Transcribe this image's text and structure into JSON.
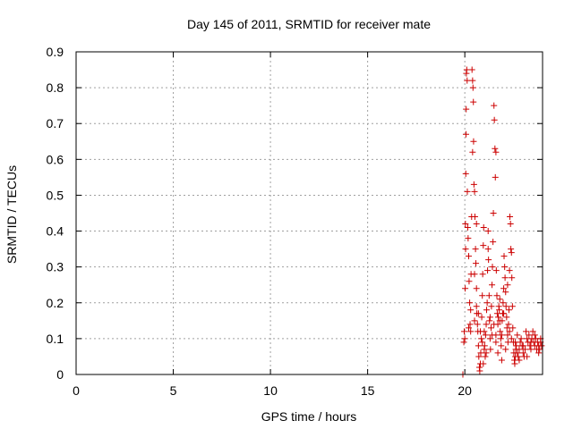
{
  "chart_data": {
    "type": "scatter",
    "title": "Day 145 of 2011, SRMTID for receiver mate",
    "xlabel": "GPS time / hours",
    "ylabel": "SRMTID / TECUs",
    "xlim": [
      0,
      24
    ],
    "ylim": [
      0,
      0.9
    ],
    "xticks": [
      0,
      5,
      10,
      15,
      20
    ],
    "xtick_labels": [
      "0",
      "5",
      "10",
      "15",
      "20"
    ],
    "yticks": [
      0,
      0.1,
      0.2,
      0.3,
      0.4,
      0.5,
      0.6,
      0.7,
      0.8,
      0.9
    ],
    "ytick_labels": [
      "0",
      "0.1",
      "0.2",
      "0.3",
      "0.4",
      "0.5",
      "0.6",
      "0.7",
      "0.8",
      "0.9"
    ],
    "grid": true,
    "marker": "+",
    "marker_color": "#cc0000",
    "series": [
      {
        "points": [
          [
            19.9,
            0.0
          ],
          [
            19.95,
            0.09
          ],
          [
            19.97,
            0.12
          ],
          [
            20.0,
            0.1
          ],
          [
            20.02,
            0.24
          ],
          [
            20.03,
            0.42
          ],
          [
            20.04,
            0.35
          ],
          [
            20.05,
            0.56
          ],
          [
            20.06,
            0.67
          ],
          [
            20.07,
            0.74
          ],
          [
            20.08,
            0.84
          ],
          [
            20.1,
            0.85
          ],
          [
            20.12,
            0.82
          ],
          [
            20.13,
            0.51
          ],
          [
            20.15,
            0.41
          ],
          [
            20.17,
            0.38
          ],
          [
            20.2,
            0.33
          ],
          [
            20.22,
            0.26
          ],
          [
            20.25,
            0.2
          ],
          [
            20.27,
            0.14
          ],
          [
            20.3,
            0.18
          ],
          [
            20.32,
            0.28
          ],
          [
            20.35,
            0.44
          ],
          [
            20.37,
            0.85
          ],
          [
            20.4,
            0.82
          ],
          [
            20.42,
            0.8
          ],
          [
            20.44,
            0.76
          ],
          [
            20.45,
            0.65
          ],
          [
            20.47,
            0.53
          ],
          [
            20.5,
            0.51
          ],
          [
            20.52,
            0.44
          ],
          [
            20.55,
            0.35
          ],
          [
            20.57,
            0.31
          ],
          [
            20.6,
            0.24
          ],
          [
            20.62,
            0.17
          ],
          [
            20.65,
            0.14
          ],
          [
            20.67,
            0.12
          ],
          [
            20.7,
            0.08
          ],
          [
            20.72,
            0.05
          ],
          [
            20.75,
            0.02
          ],
          [
            20.77,
            0.01
          ],
          [
            20.8,
            0.03
          ],
          [
            20.82,
            0.06
          ],
          [
            20.85,
            0.1
          ],
          [
            20.87,
            0.16
          ],
          [
            20.9,
            0.22
          ],
          [
            20.92,
            0.28
          ],
          [
            20.95,
            0.36
          ],
          [
            20.97,
            0.41
          ],
          [
            21.0,
            0.12
          ],
          [
            21.02,
            0.08
          ],
          [
            21.05,
            0.05
          ],
          [
            21.07,
            0.11
          ],
          [
            21.1,
            0.14
          ],
          [
            21.12,
            0.18
          ],
          [
            21.15,
            0.2
          ],
          [
            21.17,
            0.29
          ],
          [
            21.2,
            0.35
          ],
          [
            21.22,
            0.32
          ],
          [
            21.25,
            0.22
          ],
          [
            21.27,
            0.15
          ],
          [
            21.3,
            0.1
          ],
          [
            21.32,
            0.07
          ],
          [
            21.35,
            0.13
          ],
          [
            21.37,
            0.19
          ],
          [
            21.4,
            0.25
          ],
          [
            21.42,
            0.3
          ],
          [
            21.45,
            0.37
          ],
          [
            21.47,
            0.45
          ],
          [
            21.5,
            0.75
          ],
          [
            21.52,
            0.71
          ],
          [
            21.55,
            0.63
          ],
          [
            21.57,
            0.55
          ],
          [
            21.6,
            0.62
          ],
          [
            21.62,
            0.29
          ],
          [
            21.65,
            0.22
          ],
          [
            21.67,
            0.17
          ],
          [
            21.7,
            0.14
          ],
          [
            21.72,
            0.16
          ],
          [
            21.75,
            0.19
          ],
          [
            21.77,
            0.18
          ],
          [
            21.8,
            0.15
          ],
          [
            21.82,
            0.12
          ],
          [
            21.85,
            0.1
          ],
          [
            21.87,
            0.08
          ],
          [
            21.9,
            0.11
          ],
          [
            21.92,
            0.15
          ],
          [
            21.95,
            0.17
          ],
          [
            21.97,
            0.2
          ],
          [
            22.0,
            0.24
          ],
          [
            22.02,
            0.33
          ],
          [
            22.05,
            0.3
          ],
          [
            22.07,
            0.27
          ],
          [
            22.1,
            0.23
          ],
          [
            22.12,
            0.19
          ],
          [
            22.15,
            0.16
          ],
          [
            22.17,
            0.13
          ],
          [
            22.2,
            0.11
          ],
          [
            22.22,
            0.09
          ],
          [
            22.25,
            0.14
          ],
          [
            22.27,
            0.18
          ],
          [
            22.3,
            0.29
          ],
          [
            22.32,
            0.44
          ],
          [
            22.35,
            0.42
          ],
          [
            22.37,
            0.35
          ],
          [
            22.4,
            0.34
          ],
          [
            22.42,
            0.27
          ],
          [
            22.45,
            0.19
          ],
          [
            22.47,
            0.13
          ],
          [
            22.5,
            0.09
          ],
          [
            22.52,
            0.06
          ],
          [
            22.55,
            0.04
          ],
          [
            22.57,
            0.03
          ],
          [
            22.6,
            0.05
          ],
          [
            22.62,
            0.07
          ],
          [
            22.65,
            0.08
          ],
          [
            22.7,
            0.06
          ],
          [
            22.75,
            0.05
          ],
          [
            22.8,
            0.07
          ],
          [
            22.85,
            0.09
          ],
          [
            22.9,
            0.1
          ],
          [
            22.95,
            0.08
          ],
          [
            23.0,
            0.06
          ],
          [
            23.05,
            0.05
          ],
          [
            23.1,
            0.07
          ],
          [
            23.15,
            0.12
          ],
          [
            23.2,
            0.1
          ],
          [
            23.25,
            0.09
          ],
          [
            23.3,
            0.11
          ],
          [
            23.35,
            0.08
          ],
          [
            23.4,
            0.07
          ],
          [
            23.45,
            0.1
          ],
          [
            23.5,
            0.12
          ],
          [
            23.55,
            0.09
          ],
          [
            23.6,
            0.08
          ],
          [
            23.65,
            0.1
          ],
          [
            23.7,
            0.07
          ],
          [
            23.75,
            0.09
          ],
          [
            23.8,
            0.08
          ],
          [
            23.85,
            0.07
          ],
          [
            23.9,
            0.09
          ],
          [
            23.95,
            0.08
          ],
          [
            20.4,
            0.62
          ],
          [
            20.5,
            0.28
          ],
          [
            20.6,
            0.19
          ],
          [
            20.8,
            0.12
          ],
          [
            21.0,
            0.07
          ],
          [
            21.3,
            0.16
          ],
          [
            21.5,
            0.14
          ],
          [
            21.6,
            0.11
          ],
          [
            21.8,
            0.21
          ],
          [
            22.0,
            0.17
          ],
          [
            22.2,
            0.25
          ],
          [
            22.4,
            0.1
          ],
          [
            20.2,
            0.13
          ],
          [
            20.3,
            0.12
          ],
          [
            20.5,
            0.15
          ],
          [
            20.7,
            0.17
          ],
          [
            20.9,
            0.09
          ],
          [
            21.1,
            0.06
          ],
          [
            21.4,
            0.11
          ],
          [
            21.6,
            0.09
          ],
          [
            21.7,
            0.06
          ],
          [
            21.9,
            0.04
          ],
          [
            22.1,
            0.07
          ],
          [
            22.3,
            0.12
          ],
          [
            22.6,
            0.09
          ],
          [
            22.7,
            0.11
          ],
          [
            22.8,
            0.04
          ],
          [
            23.0,
            0.08
          ],
          [
            23.2,
            0.05
          ],
          [
            23.4,
            0.09
          ],
          [
            23.6,
            0.11
          ],
          [
            23.8,
            0.06
          ],
          [
            23.9,
            0.1
          ],
          [
            21.2,
            0.4
          ],
          [
            20.6,
            0.42
          ],
          [
            20.95,
            0.03
          ]
        ]
      }
    ]
  }
}
